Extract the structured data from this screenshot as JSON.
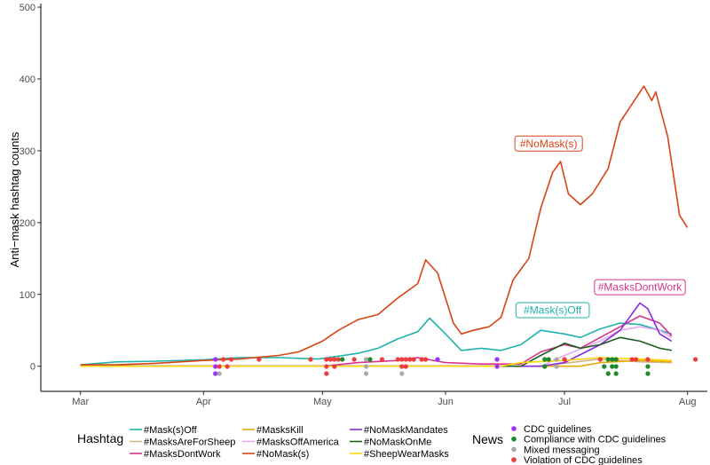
{
  "chart_data": {
    "type": "line",
    "ylabel": "Anti−mask hashtag counts",
    "xlabel": "",
    "x_ticks": [
      "Mar",
      "Apr",
      "May",
      "Jun",
      "Jul",
      "Aug"
    ],
    "y_ticks": [
      "0",
      "100",
      "200",
      "300",
      "400",
      "500"
    ],
    "ylim": [
      -35,
      505
    ],
    "xlim": [
      "2020-02-20",
      "2020-08-06"
    ],
    "grid": false,
    "legend_placement": "bottom",
    "hashtag_legend_title": "Hashtag",
    "news_legend_title": "News",
    "series": [
      {
        "name": "#Mask(s)Off",
        "color": "#20b2aa",
        "points": [
          [
            "2020-03-01",
            2
          ],
          [
            "2020-03-10",
            6
          ],
          [
            "2020-03-20",
            7
          ],
          [
            "2020-04-01",
            9
          ],
          [
            "2020-04-10",
            12
          ],
          [
            "2020-04-20",
            12
          ],
          [
            "2020-04-30",
            10
          ],
          [
            "2020-05-10",
            18
          ],
          [
            "2020-05-15",
            25
          ],
          [
            "2020-05-20",
            38
          ],
          [
            "2020-05-25",
            48
          ],
          [
            "2020-05-28",
            67
          ],
          [
            "2020-06-01",
            45
          ],
          [
            "2020-06-05",
            22
          ],
          [
            "2020-06-10",
            25
          ],
          [
            "2020-06-15",
            22
          ],
          [
            "2020-06-20",
            30
          ],
          [
            "2020-06-25",
            50
          ],
          [
            "2020-07-01",
            45
          ],
          [
            "2020-07-05",
            40
          ],
          [
            "2020-07-10",
            52
          ],
          [
            "2020-07-15",
            60
          ],
          [
            "2020-07-20",
            58
          ],
          [
            "2020-07-25",
            50
          ],
          [
            "2020-07-28",
            45
          ]
        ]
      },
      {
        "name": "#MasksAreForSheep",
        "color": "#d2b48c",
        "points": [
          [
            "2020-03-01",
            0
          ],
          [
            "2020-06-25",
            0
          ],
          [
            "2020-07-01",
            4
          ],
          [
            "2020-07-10",
            10
          ],
          [
            "2020-07-15",
            8
          ],
          [
            "2020-07-20",
            6
          ],
          [
            "2020-07-28",
            5
          ]
        ]
      },
      {
        "name": "#MasksDontWork",
        "color": "#d6338c",
        "points": [
          [
            "2020-03-01",
            0
          ],
          [
            "2020-05-01",
            0
          ],
          [
            "2020-05-10",
            5
          ],
          [
            "2020-05-20",
            8
          ],
          [
            "2020-05-25",
            12
          ],
          [
            "2020-06-01",
            5
          ],
          [
            "2020-06-10",
            3
          ],
          [
            "2020-06-20",
            3
          ],
          [
            "2020-06-25",
            20
          ],
          [
            "2020-07-01",
            30
          ],
          [
            "2020-07-05",
            25
          ],
          [
            "2020-07-10",
            40
          ],
          [
            "2020-07-15",
            55
          ],
          [
            "2020-07-20",
            70
          ],
          [
            "2020-07-25",
            60
          ],
          [
            "2020-07-28",
            42
          ]
        ]
      },
      {
        "name": "#MasksKill",
        "color": "#e6ab02",
        "points": [
          [
            "2020-03-01",
            0
          ],
          [
            "2020-07-05",
            0
          ],
          [
            "2020-07-10",
            5
          ],
          [
            "2020-07-20",
            8
          ],
          [
            "2020-07-28",
            6
          ]
        ]
      },
      {
        "name": "#MasksOffAmerica",
        "color": "#e6a8ee",
        "points": [
          [
            "2020-03-01",
            0
          ],
          [
            "2020-06-25",
            0
          ],
          [
            "2020-07-01",
            15
          ],
          [
            "2020-07-10",
            35
          ],
          [
            "2020-07-15",
            50
          ],
          [
            "2020-07-20",
            55
          ],
          [
            "2020-07-25",
            50
          ],
          [
            "2020-07-28",
            40
          ]
        ]
      },
      {
        "name": "#NoMask(s)",
        "color": "#d84315",
        "points": [
          [
            "2020-03-01",
            2
          ],
          [
            "2020-03-10",
            2
          ],
          [
            "2020-03-20",
            4
          ],
          [
            "2020-04-01",
            8
          ],
          [
            "2020-04-10",
            10
          ],
          [
            "2020-04-20",
            15
          ],
          [
            "2020-04-25",
            20
          ],
          [
            "2020-05-01",
            35
          ],
          [
            "2020-05-05",
            50
          ],
          [
            "2020-05-10",
            65
          ],
          [
            "2020-05-15",
            72
          ],
          [
            "2020-05-20",
            95
          ],
          [
            "2020-05-25",
            115
          ],
          [
            "2020-05-27",
            148
          ],
          [
            "2020-05-30",
            130
          ],
          [
            "2020-06-03",
            60
          ],
          [
            "2020-06-05",
            45
          ],
          [
            "2020-06-08",
            50
          ],
          [
            "2020-06-12",
            55
          ],
          [
            "2020-06-15",
            68
          ],
          [
            "2020-06-18",
            120
          ],
          [
            "2020-06-22",
            150
          ],
          [
            "2020-06-25",
            220
          ],
          [
            "2020-06-28",
            270
          ],
          [
            "2020-06-30",
            285
          ],
          [
            "2020-07-02",
            240
          ],
          [
            "2020-07-05",
            225
          ],
          [
            "2020-07-08",
            240
          ],
          [
            "2020-07-12",
            275
          ],
          [
            "2020-07-15",
            340
          ],
          [
            "2020-07-18",
            365
          ],
          [
            "2020-07-21",
            390
          ],
          [
            "2020-07-23",
            370
          ],
          [
            "2020-07-24",
            382
          ],
          [
            "2020-07-27",
            320
          ],
          [
            "2020-07-30",
            210
          ],
          [
            "2020-08-01",
            193
          ]
        ]
      },
      {
        "name": "#NoMaskMandates",
        "color": "#8a2be2",
        "points": [
          [
            "2020-03-01",
            0
          ],
          [
            "2020-06-25",
            0
          ],
          [
            "2020-07-01",
            5
          ],
          [
            "2020-07-10",
            30
          ],
          [
            "2020-07-15",
            50
          ],
          [
            "2020-07-20",
            88
          ],
          [
            "2020-07-22",
            80
          ],
          [
            "2020-07-25",
            45
          ],
          [
            "2020-07-28",
            35
          ]
        ]
      },
      {
        "name": "#NoMaskOnMe",
        "color": "#1b5e20",
        "points": [
          [
            "2020-03-01",
            0
          ],
          [
            "2020-06-20",
            0
          ],
          [
            "2020-06-25",
            15
          ],
          [
            "2020-07-01",
            32
          ],
          [
            "2020-07-05",
            25
          ],
          [
            "2020-07-10",
            30
          ],
          [
            "2020-07-15",
            40
          ],
          [
            "2020-07-20",
            35
          ],
          [
            "2020-07-25",
            25
          ],
          [
            "2020-07-28",
            22
          ]
        ]
      },
      {
        "name": "#SheepWearMasks",
        "color": "#ffd700",
        "points": [
          [
            "2020-03-01",
            0
          ],
          [
            "2020-06-15",
            0
          ],
          [
            "2020-06-20",
            5
          ],
          [
            "2020-07-01",
            8
          ],
          [
            "2020-07-10",
            12
          ],
          [
            "2020-07-20",
            10
          ],
          [
            "2020-07-28",
            8
          ]
        ]
      }
    ],
    "annotations": [
      {
        "text": "#NoMask(s)",
        "x": "2020-06-27",
        "y": 310,
        "color": "#d84315"
      },
      {
        "text": "#MasksDontWork",
        "x": "2020-07-20",
        "y": 110,
        "color": "#d6338c"
      },
      {
        "text": "#Mask(s)Off",
        "x": "2020-06-28",
        "y": 78,
        "color": "#20b2aa"
      }
    ],
    "news_categories": [
      {
        "name": "CDC guidelines",
        "color": "#9b30ff"
      },
      {
        "name": "Compliance with CDC guidelines",
        "color": "#1b8a2e"
      },
      {
        "name": "Mixed messaging",
        "color": "#a9a9a9"
      },
      {
        "name": "Violation of CDC guidelines",
        "color": "#ee3b3b"
      }
    ],
    "news_events": [
      {
        "date": "2020-04-04",
        "category": "CDC guidelines",
        "row": 0
      },
      {
        "date": "2020-04-04",
        "category": "CDC guidelines",
        "row": 1
      },
      {
        "date": "2020-04-04",
        "category": "CDC guidelines",
        "row": 2
      },
      {
        "date": "2020-04-05",
        "category": "Mixed messaging",
        "row": 2
      },
      {
        "date": "2020-04-05",
        "category": "Violation of CDC guidelines",
        "row": 1
      },
      {
        "date": "2020-04-06",
        "category": "Violation of CDC guidelines",
        "row": 0
      },
      {
        "date": "2020-04-07",
        "category": "Violation of CDC guidelines",
        "row": 1
      },
      {
        "date": "2020-04-08",
        "category": "Violation of CDC guidelines",
        "row": 0
      },
      {
        "date": "2020-04-15",
        "category": "Violation of CDC guidelines",
        "row": 0
      },
      {
        "date": "2020-04-28",
        "category": "Violation of CDC guidelines",
        "row": 0
      },
      {
        "date": "2020-05-02",
        "category": "Violation of CDC guidelines",
        "row": 0
      },
      {
        "date": "2020-05-02",
        "category": "Violation of CDC guidelines",
        "row": 1
      },
      {
        "date": "2020-05-02",
        "category": "Violation of CDC guidelines",
        "row": 2
      },
      {
        "date": "2020-05-03",
        "category": "Violation of CDC guidelines",
        "row": 0
      },
      {
        "date": "2020-05-04",
        "category": "Violation of CDC guidelines",
        "row": 0
      },
      {
        "date": "2020-05-04",
        "category": "Violation of CDC guidelines",
        "row": 1
      },
      {
        "date": "2020-05-05",
        "category": "Violation of CDC guidelines",
        "row": 0
      },
      {
        "date": "2020-05-06",
        "category": "Compliance with CDC guidelines",
        "row": 0
      },
      {
        "date": "2020-05-09",
        "category": "Violation of CDC guidelines",
        "row": 0
      },
      {
        "date": "2020-05-12",
        "category": "Mixed messaging",
        "row": 0
      },
      {
        "date": "2020-05-12",
        "category": "Mixed messaging",
        "row": 1
      },
      {
        "date": "2020-05-12",
        "category": "Mixed messaging",
        "row": 2
      },
      {
        "date": "2020-05-13",
        "category": "Compliance with CDC guidelines",
        "row": 0
      },
      {
        "date": "2020-05-16",
        "category": "Violation of CDC guidelines",
        "row": 0
      },
      {
        "date": "2020-05-20",
        "category": "Violation of CDC guidelines",
        "row": 0
      },
      {
        "date": "2020-05-21",
        "category": "Violation of CDC guidelines",
        "row": 0
      },
      {
        "date": "2020-05-21",
        "category": "Violation of CDC guidelines",
        "row": 1
      },
      {
        "date": "2020-05-21",
        "category": "Mixed messaging",
        "row": 2
      },
      {
        "date": "2020-05-22",
        "category": "Violation of CDC guidelines",
        "row": 0
      },
      {
        "date": "2020-05-22",
        "category": "Violation of CDC guidelines",
        "row": 1
      },
      {
        "date": "2020-05-23",
        "category": "Violation of CDC guidelines",
        "row": 0
      },
      {
        "date": "2020-05-24",
        "category": "Violation of CDC guidelines",
        "row": 0
      },
      {
        "date": "2020-05-26",
        "category": "Violation of CDC guidelines",
        "row": 0
      },
      {
        "date": "2020-05-27",
        "category": "Violation of CDC guidelines",
        "row": 0
      },
      {
        "date": "2020-05-30",
        "category": "CDC guidelines",
        "row": 0
      },
      {
        "date": "2020-06-14",
        "category": "CDC guidelines",
        "row": 0
      },
      {
        "date": "2020-06-14",
        "category": "CDC guidelines",
        "row": 1
      },
      {
        "date": "2020-06-26",
        "category": "Compliance with CDC guidelines",
        "row": 0
      },
      {
        "date": "2020-06-26",
        "category": "Compliance with CDC guidelines",
        "row": 1
      },
      {
        "date": "2020-06-27",
        "category": "Compliance with CDC guidelines",
        "row": 0
      },
      {
        "date": "2020-06-29",
        "category": "Mixed messaging",
        "row": 0
      },
      {
        "date": "2020-06-29",
        "category": "Mixed messaging",
        "row": 1
      },
      {
        "date": "2020-07-01",
        "category": "Violation of CDC guidelines",
        "row": 0
      },
      {
        "date": "2020-07-10",
        "category": "Violation of CDC guidelines",
        "row": 0
      },
      {
        "date": "2020-07-11",
        "category": "Compliance with CDC guidelines",
        "row": 1
      },
      {
        "date": "2020-07-12",
        "category": "Compliance with CDC guidelines",
        "row": 0
      },
      {
        "date": "2020-07-12",
        "category": "Compliance with CDC guidelines",
        "row": 2
      },
      {
        "date": "2020-07-13",
        "category": "Compliance with CDC guidelines",
        "row": 0
      },
      {
        "date": "2020-07-13",
        "category": "Compliance with CDC guidelines",
        "row": 1
      },
      {
        "date": "2020-07-14",
        "category": "Compliance with CDC guidelines",
        "row": 0
      },
      {
        "date": "2020-07-14",
        "category": "Compliance with CDC guidelines",
        "row": 1
      },
      {
        "date": "2020-07-14",
        "category": "Compliance with CDC guidelines",
        "row": 2
      },
      {
        "date": "2020-07-18",
        "category": "Violation of CDC guidelines",
        "row": 0
      },
      {
        "date": "2020-07-19",
        "category": "Violation of CDC guidelines",
        "row": 0
      },
      {
        "date": "2020-07-22",
        "category": "Violation of CDC guidelines",
        "row": 0
      },
      {
        "date": "2020-07-22",
        "category": "Compliance with CDC guidelines",
        "row": 1
      },
      {
        "date": "2020-07-22",
        "category": "Compliance with CDC guidelines",
        "row": 2
      },
      {
        "date": "2020-08-03",
        "category": "Violation of CDC guidelines",
        "row": 0
      }
    ]
  }
}
